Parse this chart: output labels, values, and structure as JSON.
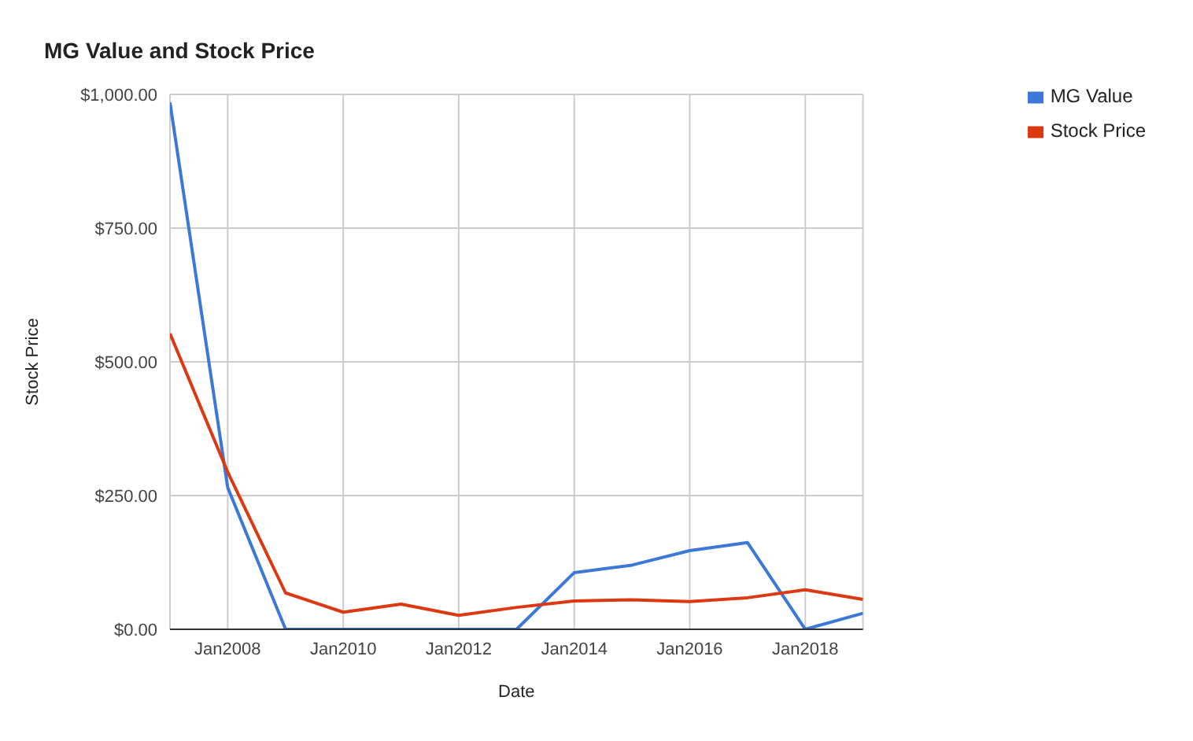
{
  "chart_data": {
    "type": "line",
    "title": "MG Value and Stock Price",
    "xlabel": "Date",
    "ylabel": "Stock Price",
    "x": [
      "2007",
      "2008",
      "2009",
      "2010",
      "2011",
      "2012",
      "2013",
      "2014",
      "2015",
      "2016",
      "2017",
      "2018",
      "2019"
    ],
    "series": [
      {
        "name": "MG Value",
        "color": "#3c78d8",
        "values": [
          985,
          265,
          0,
          0,
          0,
          0,
          0,
          106,
          120,
          147,
          162,
          0,
          30
        ]
      },
      {
        "name": "Stock Price",
        "color": "#dc3912",
        "values": [
          553,
          294,
          68,
          32,
          47,
          26,
          41,
          53,
          55,
          52,
          59,
          74,
          56
        ]
      }
    ],
    "xlim": [
      "2007",
      "2019"
    ],
    "xticks": [
      {
        "value": "2008",
        "label": "Jan2008"
      },
      {
        "value": "2010",
        "label": "Jan2010"
      },
      {
        "value": "2012",
        "label": "Jan2012"
      },
      {
        "value": "2014",
        "label": "Jan2014"
      },
      {
        "value": "2016",
        "label": "Jan2016"
      },
      {
        "value": "2018",
        "label": "Jan2018"
      }
    ],
    "ylim": [
      0,
      1000
    ],
    "yticks": [
      {
        "value": 0,
        "label": "$0.00"
      },
      {
        "value": 250,
        "label": "$250.00"
      },
      {
        "value": 500,
        "label": "$500.00"
      },
      {
        "value": 750,
        "label": "$750.00"
      },
      {
        "value": 1000,
        "label": "$1,000.00"
      }
    ],
    "grid": true,
    "legend": "right",
    "marker": "none",
    "line_style": "solid"
  }
}
